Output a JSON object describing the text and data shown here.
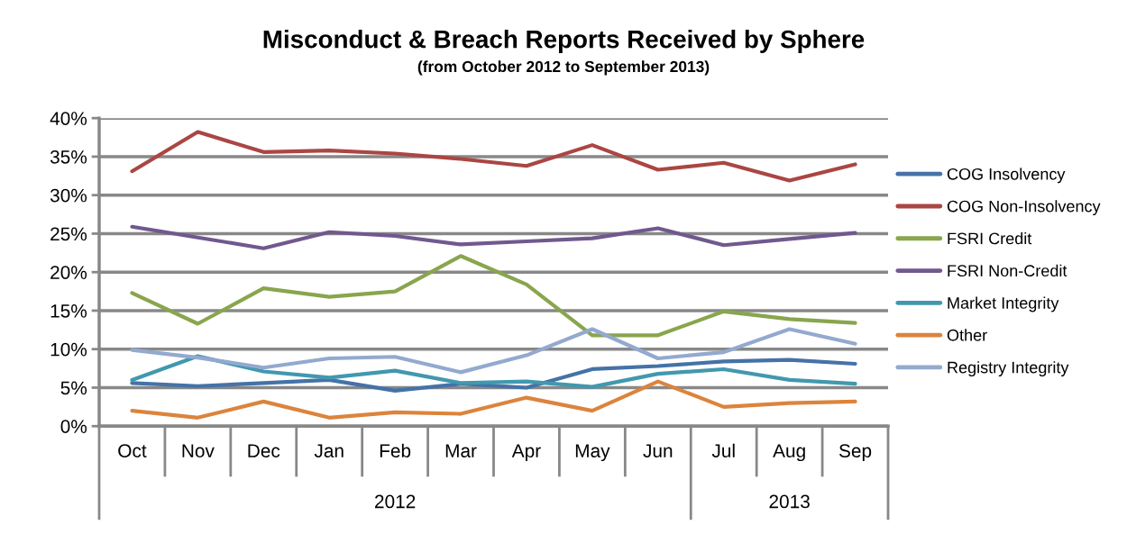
{
  "chart_data": {
    "type": "line",
    "title": "Misconduct & Breach Reports Received by Sphere",
    "subtitle": "(from October 2012 to September 2013)",
    "categories": [
      "Oct",
      "Nov",
      "Dec",
      "Jan",
      "Feb",
      "Mar",
      "Apr",
      "May",
      "Jun",
      "Jul",
      "Aug",
      "Sep"
    ],
    "annotations": [
      "2012",
      "2013"
    ],
    "series": [
      {
        "name": "COG Insolvency",
        "color": "#4572a7",
        "values": [
          5.6,
          5.2,
          5.6,
          6.0,
          4.6,
          5.5,
          5.0,
          7.4,
          7.8,
          8.4,
          8.6,
          8.1
        ]
      },
      {
        "name": "COG Non-Insolvency",
        "color": "#aa4643",
        "values": [
          33.1,
          38.2,
          35.6,
          35.8,
          35.4,
          34.7,
          33.8,
          36.5,
          33.3,
          34.2,
          31.9,
          34.0
        ]
      },
      {
        "name": "FSRI Credit",
        "color": "#89a54e",
        "values": [
          17.3,
          13.3,
          17.9,
          16.8,
          17.5,
          22.1,
          18.4,
          11.8,
          11.8,
          14.9,
          13.9,
          13.4
        ]
      },
      {
        "name": "FSRI Non-Credit",
        "color": "#71588f",
        "values": [
          25.9,
          24.5,
          23.1,
          25.2,
          24.7,
          23.6,
          24.0,
          24.4,
          25.7,
          23.5,
          24.3,
          25.1
        ]
      },
      {
        "name": "Market Integrity",
        "color": "#4198af",
        "values": [
          6.0,
          9.1,
          7.1,
          6.3,
          7.2,
          5.6,
          5.8,
          5.1,
          6.8,
          7.4,
          6.0,
          5.5
        ]
      },
      {
        "name": "Other",
        "color": "#db843d",
        "values": [
          2.0,
          1.1,
          3.2,
          1.1,
          1.8,
          1.6,
          3.7,
          2.0,
          5.8,
          2.5,
          3.0,
          3.2
        ]
      },
      {
        "name": "Registry Integrity",
        "color": "#93a9cf",
        "values": [
          9.9,
          8.9,
          7.6,
          8.8,
          9.0,
          7.0,
          9.2,
          12.6,
          8.8,
          9.6,
          12.6,
          10.7
        ]
      }
    ],
    "ylim": [
      0,
      40
    ],
    "yticks": [
      {
        "value": 0,
        "label": "0%"
      },
      {
        "value": 5,
        "label": "5%"
      },
      {
        "value": 10,
        "label": "10%"
      },
      {
        "value": 15,
        "label": "15%"
      },
      {
        "value": 20,
        "label": "20%"
      },
      {
        "value": 25,
        "label": "25%"
      },
      {
        "value": 30,
        "label": "30%"
      },
      {
        "value": 35,
        "label": "35%"
      },
      {
        "value": 40,
        "label": "40%"
      }
    ],
    "grid": "y",
    "legend": "right",
    "marker": "none",
    "line_style": "solid"
  }
}
